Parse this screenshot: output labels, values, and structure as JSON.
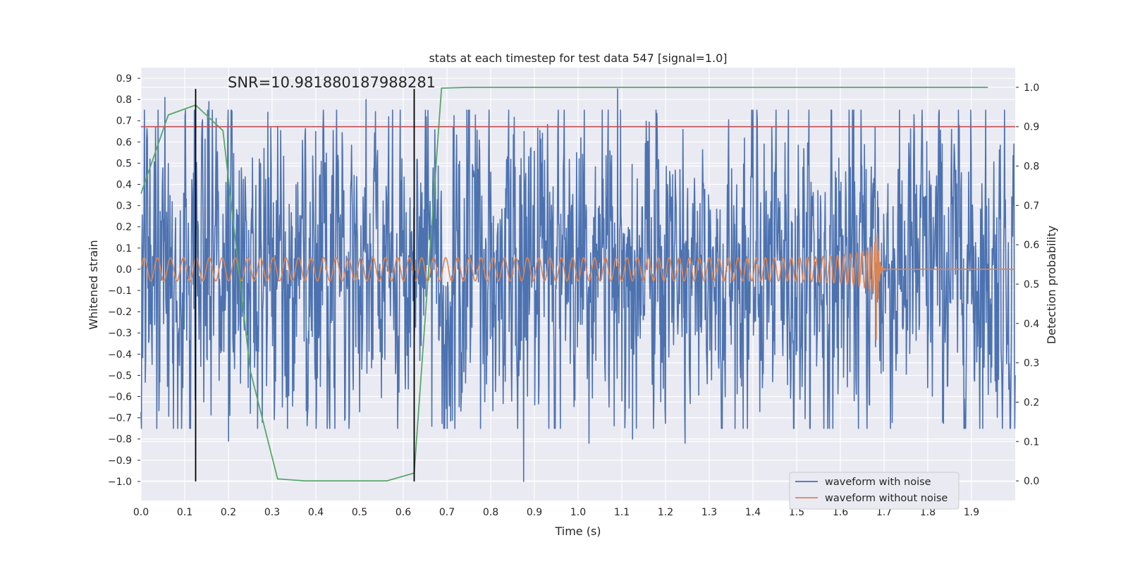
{
  "chart_data": {
    "type": "line",
    "title": "stats at each timestep for test data 547 [signal=1.0]",
    "annotation": "SNR=10.981880187988281",
    "xlabel": "Time (s)",
    "ylabel_left": "Whitened strain",
    "ylabel_right": "Detection probability",
    "xlim": [
      0.0,
      2.0
    ],
    "ylim_left": [
      -1.09,
      0.95
    ],
    "ylim_right": [
      -0.05,
      1.05
    ],
    "x_ticks": [
      "0.0",
      "0.1",
      "0.2",
      "0.3",
      "0.4",
      "0.5",
      "0.6",
      "0.7",
      "0.8",
      "0.9",
      "1.0",
      "1.1",
      "1.2",
      "1.3",
      "1.4",
      "1.5",
      "1.6",
      "1.7",
      "1.8",
      "1.9"
    ],
    "y_left_ticks": [
      "0.9",
      "0.8",
      "0.7",
      "0.6",
      "0.5",
      "0.4",
      "0.3",
      "0.2",
      "0.1",
      "0.0",
      "−0.1",
      "−0.2",
      "−0.3",
      "−0.4",
      "−0.5",
      "−0.6",
      "−0.7",
      "−0.8",
      "−0.9",
      "−1.0"
    ],
    "y_right_ticks": [
      "1.0",
      "0.9",
      "0.8",
      "0.7",
      "0.6",
      "0.5",
      "0.4",
      "0.3",
      "0.2",
      "0.1",
      "0.0"
    ],
    "grid": true,
    "legend_position": "lower-right",
    "series": [
      {
        "name": "waveform with noise",
        "axis": "left",
        "color": "#4c72b0",
        "samples": 2048,
        "approx_amplitude": 0.35,
        "peaks": [
          {
            "x": 0.055,
            "y": 0.81
          },
          {
            "x": 0.155,
            "y": 0.79
          },
          {
            "x": 0.29,
            "y": 0.74
          },
          {
            "x": 0.515,
            "y": 0.8
          },
          {
            "x": 1.09,
            "y": 0.85
          },
          {
            "x": 1.68,
            "y": 0.67
          },
          {
            "x": 0.2,
            "y": -0.81
          },
          {
            "x": 0.875,
            "y": -1.0
          },
          {
            "x": 1.025,
            "y": -0.82
          },
          {
            "x": 1.125,
            "y": -0.8
          },
          {
            "x": 1.245,
            "y": -0.82
          },
          {
            "x": 0.665,
            "y": -0.74
          }
        ]
      },
      {
        "name": "waveform without noise",
        "axis": "left",
        "color": "#dd8452",
        "type": "chirp",
        "start_amplitude": 0.055,
        "merger_time": 1.685,
        "peak_amplitude": 0.25,
        "min_value": -0.33,
        "ringdown_end": 1.7
      },
      {
        "axis": "right",
        "color": "#55a868",
        "x": [
          0.0,
          0.0625,
          0.125,
          0.1875,
          0.25,
          0.3125,
          0.375,
          0.4375,
          0.5,
          0.5625,
          0.625,
          0.6875,
          0.75,
          0.8125,
          0.875,
          0.9375,
          1.0,
          1.0625,
          1.125,
          1.1875,
          1.25,
          1.3125,
          1.375,
          1.4375,
          1.5,
          1.5625,
          1.625,
          1.6875,
          1.75,
          1.8125,
          1.875,
          1.9375
        ],
        "y": [
          0.73,
          0.93,
          0.955,
          0.89,
          0.28,
          0.005,
          0.0,
          0.0,
          0.0,
          0.0,
          0.02,
          0.998,
          1.0,
          1.0,
          1.0,
          1.0,
          1.0,
          1.0,
          1.0,
          1.0,
          1.0,
          1.0,
          1.0,
          1.0,
          1.0,
          1.0,
          1.0,
          1.0,
          1.0,
          1.0,
          1.0,
          1.0
        ]
      }
    ],
    "threshold": {
      "axis": "right",
      "y": 0.9,
      "color": "#c44e52"
    },
    "vlines": [
      {
        "x": 0.125,
        "color": "#000000",
        "ymin": -1.0,
        "ymax": 0.85
      },
      {
        "x": 0.625,
        "color": "#000000",
        "ymin": -1.0,
        "ymax": 0.85
      }
    ],
    "colors": {
      "plot_background": "#eaeaf2",
      "grid": "#ffffff",
      "legend_background": "#eaeaf2",
      "legend_border": "#cccccc"
    }
  }
}
